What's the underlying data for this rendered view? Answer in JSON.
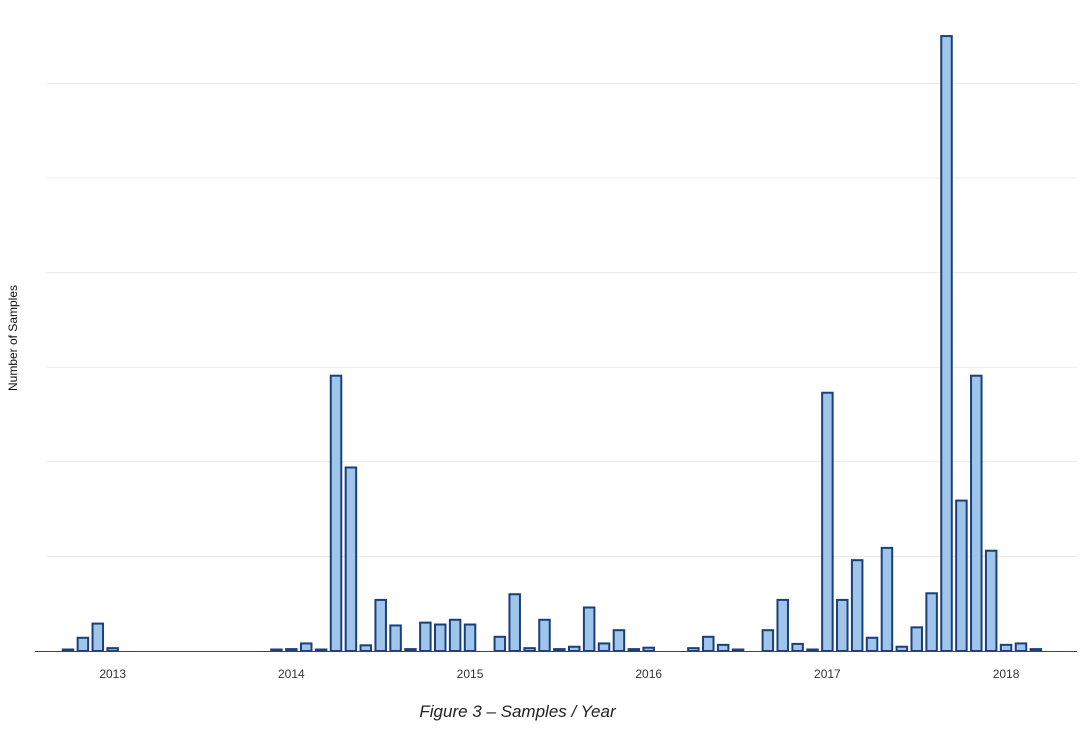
{
  "caption": "Figure 3 – Samples / Year",
  "colors": {
    "bar_fill": "#9fc5eb",
    "bar_stroke": "#1a3f7a",
    "grid": "#e8e8e8",
    "axis": "#444444",
    "text": "#333333"
  },
  "chart_data": {
    "type": "bar",
    "title": "",
    "xlabel": "",
    "ylabel": "Number of Samples",
    "x_tick_labels": [
      "2013",
      "2014",
      "2015",
      "2016",
      "2017",
      "2018"
    ],
    "y_tick_labels_shown": false,
    "grid": true,
    "gridline_count": 6,
    "legend": "none",
    "categories": [
      "2012-10",
      "2012-11",
      "2012-12",
      "2013-01",
      "2013-02",
      "2013-03",
      "2013-04",
      "2013-05",
      "2013-06",
      "2013-07",
      "2013-08",
      "2013-09",
      "2013-10",
      "2013-11",
      "2013-12",
      "2014-01",
      "2014-02",
      "2014-03",
      "2014-04",
      "2014-05",
      "2014-06",
      "2014-07",
      "2014-08",
      "2014-09",
      "2014-10",
      "2014-11",
      "2014-12",
      "2015-01",
      "2015-02",
      "2015-03",
      "2015-04",
      "2015-05",
      "2015-06",
      "2015-07",
      "2015-08",
      "2015-09",
      "2015-10",
      "2015-11",
      "2015-12",
      "2016-01",
      "2016-02",
      "2016-03",
      "2016-04",
      "2016-05",
      "2016-06",
      "2016-07",
      "2016-08",
      "2016-09",
      "2016-10",
      "2016-11",
      "2016-12",
      "2017-01",
      "2017-02",
      "2017-03",
      "2017-04",
      "2017-05",
      "2017-06",
      "2017-07",
      "2017-08",
      "2017-09",
      "2017-10",
      "2017-11",
      "2017-12",
      "2018-01",
      "2018-02",
      "2018-03",
      "2018-04"
    ],
    "values": [
      0.15,
      1.4,
      2.9,
      0.3,
      0,
      0,
      0,
      0,
      0,
      0,
      0,
      0,
      0,
      0,
      0.1,
      0.2,
      0.8,
      0.1,
      29.1,
      19.4,
      0.6,
      5.4,
      2.7,
      0.2,
      3.0,
      2.8,
      3.3,
      2.8,
      0,
      1.5,
      6.0,
      0.3,
      3.3,
      0.2,
      0.45,
      4.6,
      0.8,
      2.2,
      0.2,
      0.35,
      0,
      0,
      0.3,
      1.5,
      0.65,
      0.1,
      0,
      2.2,
      5.4,
      0.75,
      0.1,
      27.3,
      5.4,
      9.6,
      1.4,
      10.9,
      0.45,
      2.5,
      6.1,
      65.0,
      15.9,
      29.1,
      10.6,
      0.65,
      0.8,
      0.2,
      0
    ],
    "ylim": [
      0,
      66.7
    ],
    "value_unit": "estimated, grid interval = 10"
  }
}
